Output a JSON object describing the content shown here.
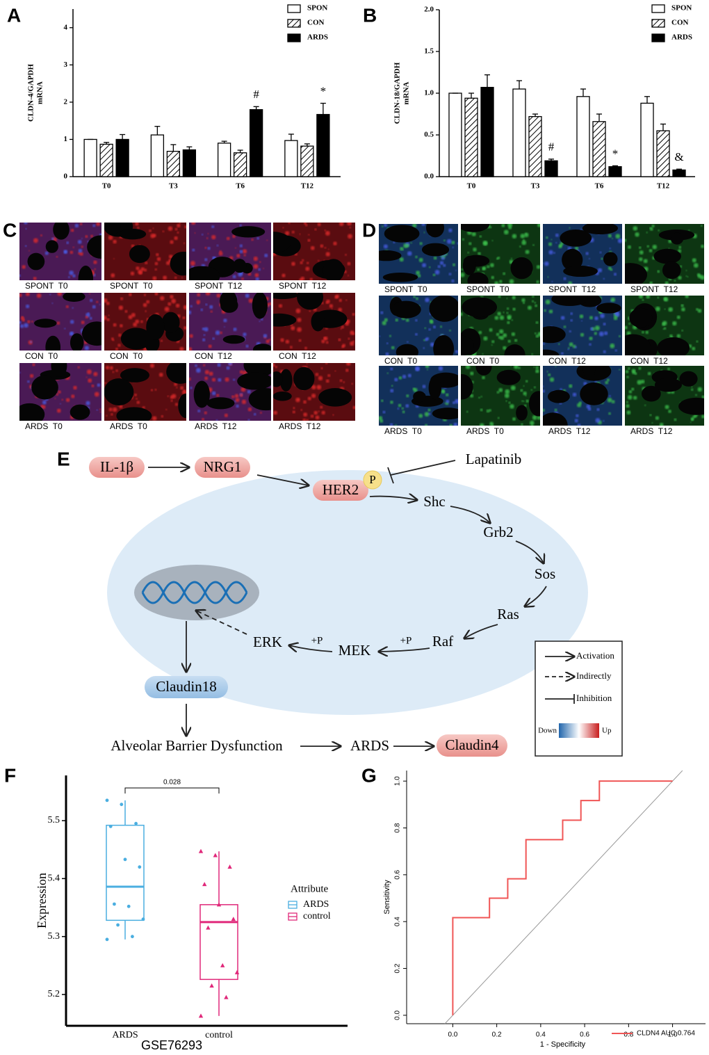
{
  "chart_data": [
    {
      "panel": "A",
      "type": "bar",
      "ylabel": [
        "CLDN-4/GAPDH",
        "mRNA"
      ],
      "categories": [
        "T0",
        "T3",
        "T6",
        "T12"
      ],
      "series": [
        {
          "name": "SPON",
          "color": "#ffffff",
          "values": [
            1.0,
            1.12,
            0.9,
            0.97
          ],
          "errors": [
            0.0,
            0.23,
            0.05,
            0.17
          ]
        },
        {
          "name": "CON",
          "color": "#ffffff",
          "hatch": true,
          "values": [
            0.87,
            0.68,
            0.64,
            0.82
          ],
          "errors": [
            0.05,
            0.18,
            0.07,
            0.06
          ]
        },
        {
          "name": "ARDS",
          "color": "#000000",
          "values": [
            1.0,
            0.72,
            1.8,
            1.67
          ],
          "errors": [
            0.13,
            0.08,
            0.08,
            0.3
          ]
        }
      ],
      "annotations": [
        null,
        null,
        "#",
        "*"
      ],
      "ylim": [
        0,
        4.5
      ],
      "yticks": [
        0,
        1,
        2,
        3,
        4
      ]
    },
    {
      "panel": "B",
      "type": "bar",
      "ylabel": [
        "CLDN-18/GAPDH",
        "mRNA"
      ],
      "categories": [
        "T0",
        "T3",
        "T6",
        "T12"
      ],
      "series": [
        {
          "name": "SPON",
          "color": "#ffffff",
          "values": [
            1.0,
            1.05,
            0.96,
            0.88
          ],
          "errors": [
            0.0,
            0.1,
            0.09,
            0.08
          ]
        },
        {
          "name": "CON",
          "color": "#ffffff",
          "hatch": true,
          "values": [
            0.94,
            0.72,
            0.66,
            0.55
          ],
          "errors": [
            0.06,
            0.03,
            0.09,
            0.08
          ]
        },
        {
          "name": "ARDS",
          "color": "#000000",
          "values": [
            1.07,
            0.19,
            0.12,
            0.08
          ],
          "errors": [
            0.15,
            0.02,
            0.01,
            0.01
          ]
        }
      ],
      "annotations": [
        null,
        "#",
        "*",
        "&"
      ],
      "ylim": [
        0,
        2.0
      ],
      "yticks": [
        {
          "value": 0,
          "label": "0.0"
        },
        0.5,
        {
          "value": 1,
          "label": "1.0"
        },
        1.5,
        {
          "value": 2,
          "label": "2.0"
        }
      ]
    },
    {
      "panel": "F",
      "type": "box",
      "ylabel": "Expression",
      "xlabel": "GSE76293",
      "categories": [
        "ARDS",
        "control"
      ],
      "legend_title": "Attribute",
      "significance": "0.028",
      "series": [
        {
          "name": "ARDS",
          "color": "#4aaee0",
          "marker": "circle",
          "q1": 5.328,
          "median": 5.386,
          "q3": 5.492,
          "whisker_low": 5.295,
          "whisker_high": 5.535,
          "points": [
            5.535,
            5.528,
            5.495,
            5.49,
            5.433,
            5.42,
            5.356,
            5.352,
            5.33,
            5.32,
            5.3,
            5.295
          ]
        },
        {
          "name": "control",
          "color": "#e0287a",
          "marker": "triangle",
          "q1": 5.226,
          "median": 5.325,
          "q3": 5.355,
          "whisker_low": 5.163,
          "whisker_high": 5.447,
          "points": [
            5.447,
            5.44,
            5.42,
            5.39,
            5.355,
            5.33,
            5.315,
            5.25,
            5.238,
            5.215,
            5.195,
            5.163
          ]
        }
      ],
      "ylim": [
        5.146,
        5.578
      ],
      "yticks": [
        5.2,
        5.3,
        5.4,
        5.5
      ]
    },
    {
      "panel": "G",
      "type": "line",
      "xlabel": "1 - Specificity",
      "ylabel": "Sensitivity",
      "series": [
        {
          "name": "CLDN4 AUC 0.764",
          "color": "#f05555",
          "x": [
            0,
            0,
            0.167,
            0.167,
            0.25,
            0.25,
            0.333,
            0.333,
            0.5,
            0.5,
            0.583,
            0.583,
            0.667,
            0.667,
            1
          ],
          "y": [
            0,
            0.417,
            0.417,
            0.5,
            0.5,
            0.583,
            0.583,
            0.75,
            0.75,
            0.833,
            0.833,
            0.917,
            0.917,
            1,
            1
          ]
        }
      ],
      "xlim": [
        -0.21,
        1.15
      ],
      "ylim": [
        -0.036,
        1.045
      ],
      "xticks": [
        {
          "value": 0,
          "label": "0.0"
        },
        0.2,
        0.4,
        0.6,
        0.8,
        {
          "value": 1,
          "label": "1.0"
        }
      ],
      "yticks": [
        {
          "value": 0,
          "label": "0.0"
        },
        0.2,
        0.4,
        0.6,
        0.8,
        {
          "value": 1,
          "label": "1.0"
        }
      ]
    }
  ],
  "panel_c": {
    "label": "C",
    "captions": [
      [
        "SPONT  T0",
        "SPONT  T0",
        "SPONT  T12",
        "SPONT  T12"
      ],
      [
        "CON  T0",
        "CON  T0",
        "CON  T12",
        "CON  T12"
      ],
      [
        "ARDS  T0",
        "ARDS  T0",
        "ARDS  T12",
        "ARDS  T12"
      ]
    ]
  },
  "panel_d": {
    "label": "D",
    "captions": [
      [
        "SPONT  T0",
        "SPONT  T0",
        "SPONT  T12",
        "SPONT  T12"
      ],
      [
        "CON  T0",
        "CON  T0",
        "CON  T12",
        "CON  T12"
      ],
      [
        "ARDS  T0",
        "ARDS  T0",
        "ARDS  T12",
        "ARDS  T12"
      ]
    ]
  },
  "diagram": {
    "label": "E",
    "nodes": [
      "IL-1β",
      "NRG1",
      "HER2",
      "P",
      "Lapatinib",
      "Shc",
      "Grb2",
      "Sos",
      "Ras",
      "Raf",
      "MEK",
      "ERK",
      "Claudin18",
      "Alveolar Barrier Dysfunction",
      "ARDS",
      "Claudin4"
    ],
    "edge_labels": [
      "+P",
      "+P"
    ],
    "legend": [
      "Activation",
      "Indirectly",
      "Inhibition",
      "Down",
      "Up"
    ]
  }
}
